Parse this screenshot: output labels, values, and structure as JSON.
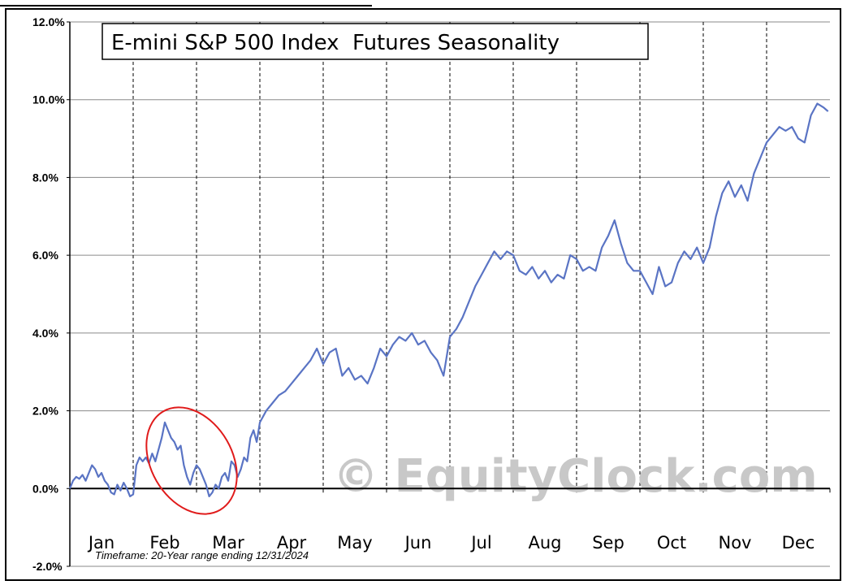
{
  "chart_data": {
    "type": "line",
    "title": "E-mini S&P 500 Index  Futures Seasonality",
    "months": [
      "Jan",
      "Feb",
      "Mar",
      "Apr",
      "May",
      "Jun",
      "Jul",
      "Aug",
      "Sep",
      "Oct",
      "Nov",
      "Dec"
    ],
    "y_ticks": [
      "12.0%",
      "10.0%",
      "8.0%",
      "6.0%",
      "4.0%",
      "2.0%",
      "0.0%",
      "-2.0%"
    ],
    "ylim": [
      -2,
      12
    ],
    "xlim": [
      0,
      12
    ],
    "grid": true,
    "timeframe_label": "Timeframe: 20-Year range ending 12/31/2024",
    "watermark": "© EquityClock.com",
    "series": [
      {
        "color": "#5a74c4",
        "x": [
          0.0,
          0.05,
          0.1,
          0.15,
          0.2,
          0.25,
          0.3,
          0.35,
          0.4,
          0.45,
          0.5,
          0.55,
          0.6,
          0.65,
          0.7,
          0.75,
          0.8,
          0.85,
          0.9,
          0.95,
          1.0,
          1.05,
          1.1,
          1.15,
          1.2,
          1.25,
          1.3,
          1.35,
          1.4,
          1.45,
          1.5,
          1.55,
          1.6,
          1.65,
          1.7,
          1.75,
          1.8,
          1.85,
          1.9,
          1.95,
          2.0,
          2.05,
          2.1,
          2.15,
          2.2,
          2.25,
          2.3,
          2.35,
          2.4,
          2.45,
          2.5,
          2.55,
          2.6,
          2.65,
          2.7,
          2.75,
          2.8,
          2.85,
          2.9,
          2.95,
          3.0,
          3.1,
          3.2,
          3.3,
          3.4,
          3.5,
          3.6,
          3.7,
          3.8,
          3.9,
          4.0,
          4.1,
          4.2,
          4.3,
          4.4,
          4.5,
          4.6,
          4.7,
          4.8,
          4.9,
          5.0,
          5.1,
          5.2,
          5.3,
          5.4,
          5.5,
          5.6,
          5.7,
          5.8,
          5.9,
          6.0,
          6.1,
          6.2,
          6.3,
          6.4,
          6.5,
          6.6,
          6.7,
          6.8,
          6.9,
          7.0,
          7.1,
          7.2,
          7.3,
          7.4,
          7.5,
          7.6,
          7.7,
          7.8,
          7.9,
          8.0,
          8.1,
          8.2,
          8.3,
          8.4,
          8.5,
          8.6,
          8.7,
          8.8,
          8.9,
          9.0,
          9.1,
          9.2,
          9.3,
          9.4,
          9.5,
          9.6,
          9.7,
          9.8,
          9.9,
          10.0,
          10.1,
          10.2,
          10.3,
          10.4,
          10.5,
          10.6,
          10.7,
          10.8,
          10.9,
          11.0,
          11.1,
          11.2,
          11.3,
          11.4,
          11.5,
          11.6,
          11.7,
          11.8,
          11.9,
          11.97
        ],
        "y": [
          0.0,
          0.2,
          0.3,
          0.25,
          0.35,
          0.2,
          0.4,
          0.6,
          0.5,
          0.3,
          0.4,
          0.2,
          0.1,
          -0.1,
          -0.15,
          0.1,
          -0.05,
          0.15,
          0.0,
          -0.2,
          -0.15,
          0.6,
          0.8,
          0.7,
          0.8,
          0.65,
          0.9,
          0.7,
          1.0,
          1.3,
          1.7,
          1.5,
          1.3,
          1.2,
          1.0,
          1.1,
          0.6,
          0.3,
          0.1,
          0.4,
          0.6,
          0.5,
          0.3,
          0.1,
          -0.2,
          -0.1,
          0.1,
          0.0,
          0.3,
          0.4,
          0.2,
          0.7,
          0.6,
          0.3,
          0.5,
          0.8,
          0.7,
          1.3,
          1.5,
          1.2,
          1.7,
          2.0,
          2.2,
          2.4,
          2.5,
          2.7,
          2.9,
          3.1,
          3.3,
          3.6,
          3.2,
          3.5,
          3.6,
          2.9,
          3.1,
          2.8,
          2.9,
          2.7,
          3.1,
          3.6,
          3.4,
          3.7,
          3.9,
          3.8,
          4.0,
          3.7,
          3.8,
          3.5,
          3.3,
          2.9,
          3.9,
          4.1,
          4.4,
          4.8,
          5.2,
          5.5,
          5.8,
          6.1,
          5.9,
          6.1,
          6.0,
          5.6,
          5.5,
          5.7,
          5.4,
          5.6,
          5.3,
          5.5,
          5.4,
          6.0,
          5.9,
          5.6,
          5.7,
          5.6,
          6.2,
          6.5,
          6.9,
          6.3,
          5.8,
          5.6,
          5.6,
          5.3,
          5.0,
          5.7,
          5.2,
          5.3,
          5.8,
          6.1,
          5.9,
          6.2,
          5.8,
          6.2,
          7.0,
          7.6,
          7.9,
          7.5,
          7.8,
          7.4,
          8.1,
          8.5,
          8.9,
          9.1,
          9.3,
          9.2,
          9.3,
          9.0,
          8.9,
          9.6,
          9.9,
          9.8,
          9.7
        ]
      }
    ]
  }
}
